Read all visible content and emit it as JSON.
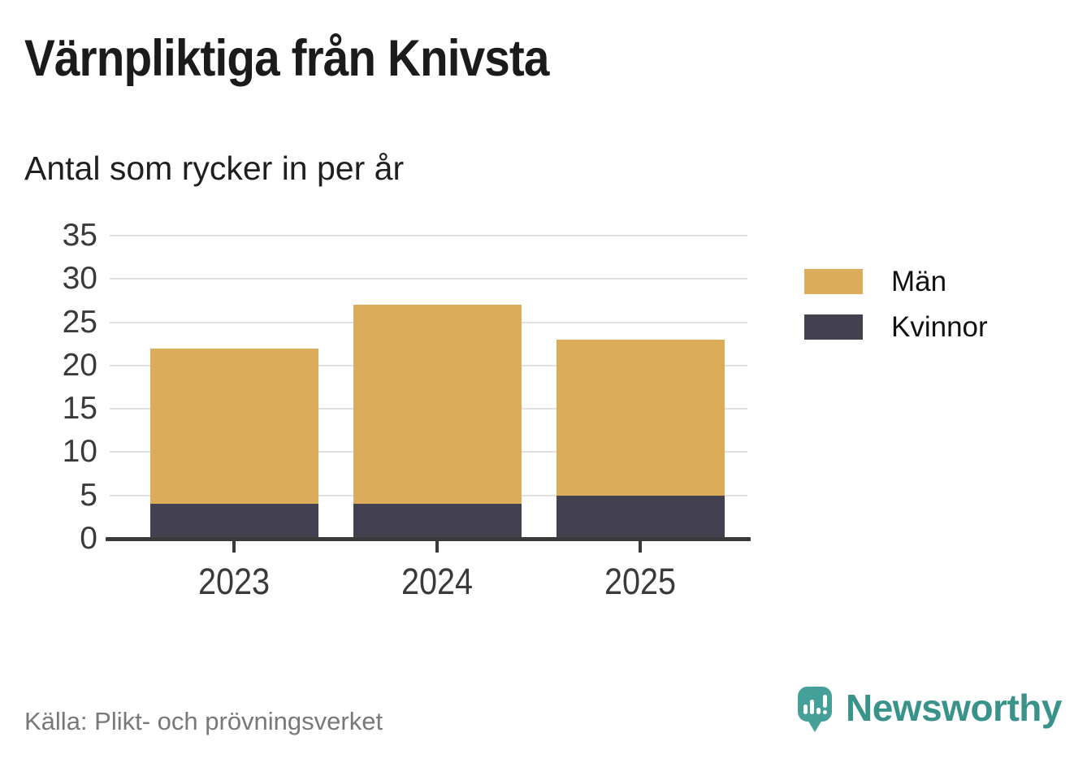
{
  "title": "Värnpliktiga från Knivsta",
  "subtitle": "Antal som rycker in per år",
  "source": "Källa: Plikt- och prövningsverket",
  "brand": {
    "name": "Newsworthy",
    "logo_icon": "bar-chart-speech-bubble",
    "teal_text": "#3a938b",
    "teal_bubble": "#45a09a"
  },
  "chart_data": {
    "type": "bar",
    "stacked": true,
    "title": "Värnpliktiga från Knivsta",
    "subtitle": "Antal som rycker in per år",
    "categories": [
      "2023",
      "2024",
      "2025"
    ],
    "series": [
      {
        "name": "Män",
        "color": "#dbac59",
        "values": [
          18,
          23,
          18
        ]
      },
      {
        "name": "Kvinnor",
        "color": "#434050",
        "values": [
          4,
          4,
          5
        ]
      }
    ],
    "stack_order_bottom_up": [
      "Kvinnor",
      "Män"
    ],
    "stack_totals": [
      22,
      27,
      23
    ],
    "ylim": [
      0,
      35
    ],
    "yticks": [
      0,
      5,
      10,
      15,
      20,
      25,
      30,
      35
    ],
    "xlabel": "",
    "ylabel": "",
    "grid": true,
    "grid_color": "#e1e1e1",
    "axis_color": "#3a3a3a",
    "legend_position": "right"
  }
}
